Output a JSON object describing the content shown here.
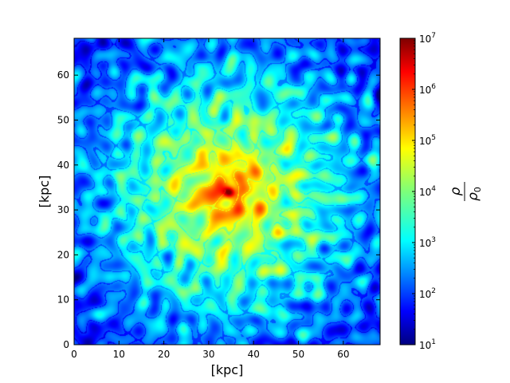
{
  "chart_data": {
    "type": "heatmap",
    "title": "",
    "xlabel": "[kpc]",
    "ylabel": "[kpc]",
    "xlim": [
      0,
      68.2
    ],
    "ylim": [
      0,
      68.2
    ],
    "x_ticks": [
      0,
      10,
      20,
      30,
      40,
      50,
      60
    ],
    "y_ticks": [
      0,
      10,
      20,
      30,
      40,
      50,
      60
    ],
    "x_tick_labels": [
      "0",
      "10",
      "20",
      "30",
      "40",
      "50",
      "60"
    ],
    "y_tick_labels": [
      "0",
      "10",
      "20",
      "30",
      "40",
      "50",
      "60"
    ],
    "colormap": "jet",
    "colorbar": {
      "scale": "log",
      "range": [
        10,
        10000000
      ],
      "ticks": [
        1,
        2,
        3,
        4,
        5,
        6,
        7
      ],
      "tick_labels": [
        {
          "base": "10",
          "exp": "1"
        },
        {
          "base": "10",
          "exp": "2"
        },
        {
          "base": "10",
          "exp": "3"
        },
        {
          "base": "10",
          "exp": "4"
        },
        {
          "base": "10",
          "exp": "5"
        },
        {
          "base": "10",
          "exp": "6"
        },
        {
          "base": "10",
          "exp": "7"
        }
      ],
      "label_numerator": "ρ",
      "label_denominator": "ρ",
      "label_denominator_sub": "0"
    },
    "field": {
      "description_center": [
        34.5,
        34
      ],
      "peak_log10": 7,
      "background_log10": 2.4,
      "texture": "turbulent filaments"
    }
  }
}
